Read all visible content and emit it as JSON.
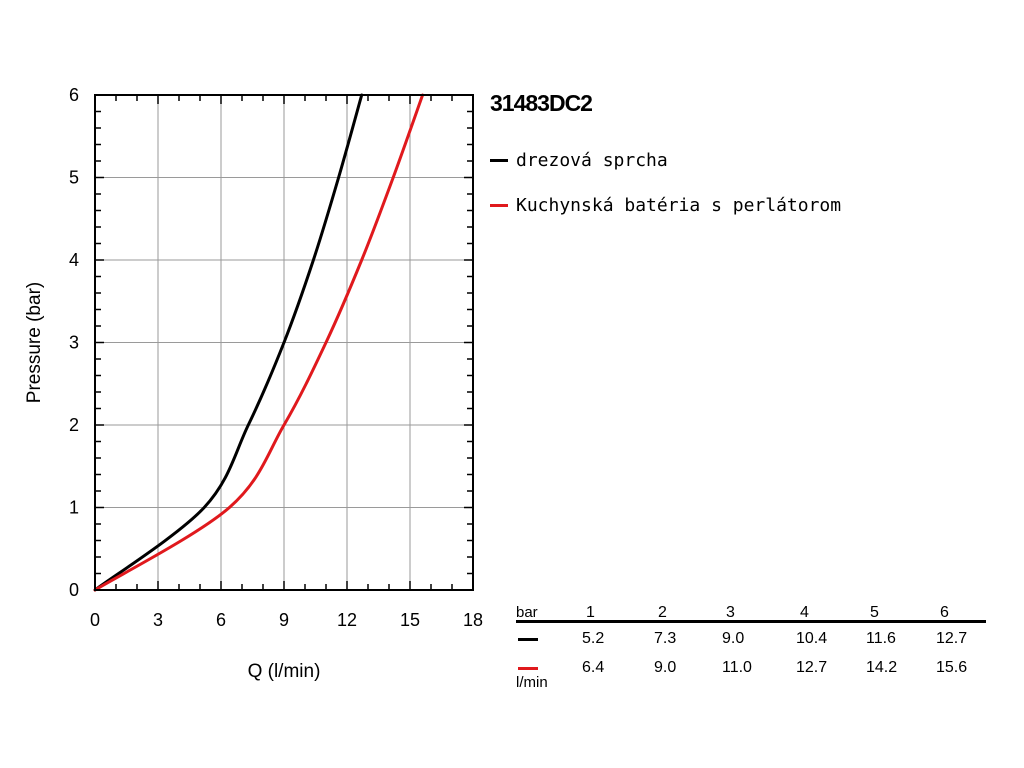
{
  "product": {
    "title": "31483DC2"
  },
  "chart_data": {
    "type": "line",
    "xlabel": "Q (l/min)",
    "ylabel": "Pressure (bar)",
    "xlim": [
      0,
      18
    ],
    "ylim": [
      0,
      6
    ],
    "xticks": [
      "0",
      "3",
      "6",
      "9",
      "12",
      "15",
      "18"
    ],
    "yticks": [
      "0",
      "1",
      "2",
      "3",
      "4",
      "5",
      "6"
    ],
    "grid": true,
    "legend_position": "right",
    "series": [
      {
        "name": "drezová sprcha",
        "color": "#000000",
        "x": [
          0,
          5.2,
          7.3,
          9.0,
          10.4,
          11.6,
          12.7
        ],
        "y": [
          0,
          1,
          2,
          3,
          4,
          5,
          6
        ]
      },
      {
        "name": "Kuchynská batéria s perlátorom",
        "color": "#e0191d",
        "x": [
          0,
          6.4,
          9.0,
          11.0,
          12.7,
          14.2,
          15.6
        ],
        "y": [
          0,
          1,
          2,
          3,
          4,
          5,
          6
        ]
      }
    ]
  },
  "table": {
    "pressure_unit": "bar",
    "flow_unit": "l/min",
    "pressures": [
      "1",
      "2",
      "3",
      "4",
      "5",
      "6"
    ],
    "rows": [
      {
        "color": "#000000",
        "values": [
          "5.2",
          "7.3",
          "9.0",
          "10.4",
          "11.6",
          "12.7"
        ]
      },
      {
        "color": "#e0191d",
        "values": [
          "6.4",
          "9.0",
          "11.0",
          "12.7",
          "14.2",
          "15.6"
        ]
      }
    ]
  }
}
